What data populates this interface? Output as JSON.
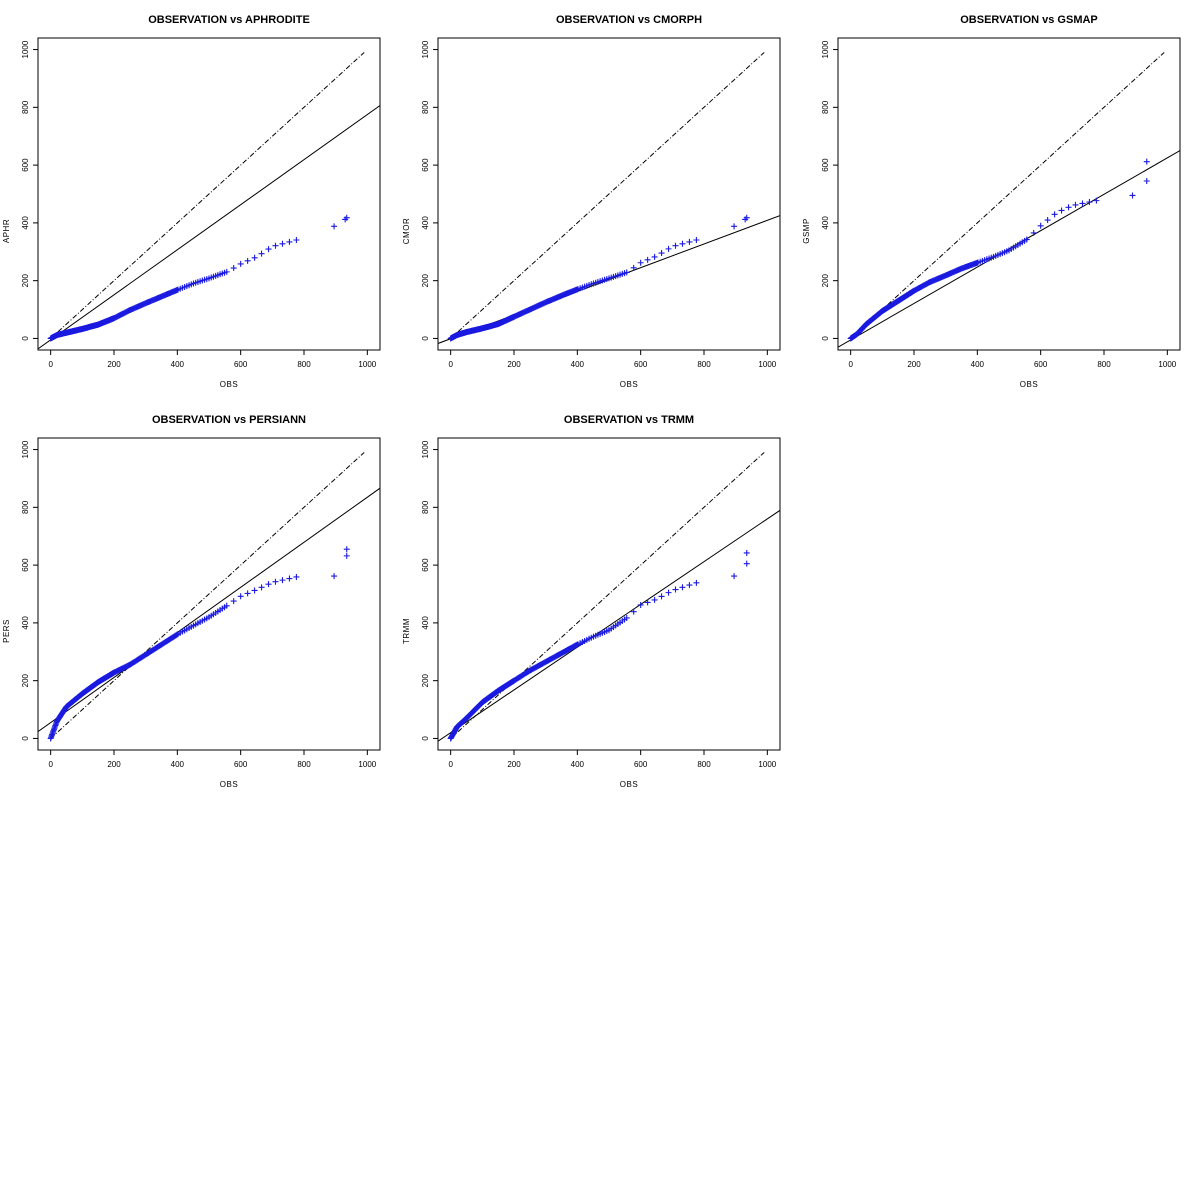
{
  "chart_data": [
    {
      "type": "scatter",
      "title": "OBSERVATION vs APHRODITE",
      "xlabel": "OBS",
      "ylabel": "APHR",
      "xlim": [
        -40,
        1040
      ],
      "ylim": [
        -40,
        1040
      ],
      "xticks": [
        "0",
        "200",
        "400",
        "600",
        "800",
        "1000"
      ],
      "yticks": [
        "0",
        "200",
        "400",
        "600",
        "800",
        "1000"
      ],
      "marker": "+",
      "point_color": "#1a1ae0",
      "regression_line": {
        "intercept": -5,
        "slope": 0.78
      },
      "reference_line": {
        "intercept": 0,
        "slope": 1,
        "to_x": 990
      },
      "curve": {
        "x": [
          0,
          20,
          50,
          100,
          150,
          200,
          250,
          300,
          350,
          400,
          450,
          500,
          560,
          600,
          650,
          700,
          780
        ],
        "y": [
          0,
          12,
          20,
          33,
          48,
          70,
          98,
          122,
          145,
          168,
          190,
          208,
          232,
          258,
          282,
          318,
          342
        ]
      },
      "outliers": {
        "x": [
          895,
          930,
          935
        ],
        "y": [
          388,
          412,
          418
        ]
      }
    },
    {
      "type": "scatter",
      "title": "OBSERVATION vs CMORPH",
      "xlabel": "OBS",
      "ylabel": "CMOR",
      "xlim": [
        -40,
        1040
      ],
      "ylim": [
        -40,
        1040
      ],
      "xticks": [
        "0",
        "200",
        "400",
        "600",
        "800",
        "1000"
      ],
      "yticks": [
        "0",
        "200",
        "400",
        "600",
        "800",
        "1000"
      ],
      "marker": "+",
      "point_color": "#1a1ae0",
      "regression_line": {
        "intercept": -1,
        "slope": 0.41
      },
      "reference_line": {
        "intercept": 0,
        "slope": 1,
        "to_x": 990
      },
      "curve": {
        "x": [
          0,
          20,
          50,
          100,
          150,
          200,
          250,
          300,
          350,
          400,
          450,
          500,
          560,
          600,
          650,
          700,
          780
        ],
        "y": [
          0,
          12,
          22,
          35,
          50,
          75,
          100,
          125,
          148,
          170,
          190,
          208,
          230,
          262,
          285,
          318,
          342
        ]
      },
      "outliers": {
        "x": [
          895,
          930,
          935
        ],
        "y": [
          388,
          412,
          418
        ]
      }
    },
    {
      "type": "scatter",
      "title": "OBSERVATION vs GSMAP",
      "xlabel": "OBS",
      "ylabel": "GSMP",
      "xlim": [
        -40,
        1040
      ],
      "ylim": [
        -40,
        1040
      ],
      "xticks": [
        "0",
        "200",
        "400",
        "600",
        "800",
        "1000"
      ],
      "yticks": [
        "0",
        "200",
        "400",
        "600",
        "800",
        "1000"
      ],
      "marker": "+",
      "point_color": "#1a1ae0",
      "regression_line": {
        "intercept": -5,
        "slope": 0.63
      },
      "reference_line": {
        "intercept": 0,
        "slope": 1,
        "to_x": 990
      },
      "curve": {
        "x": [
          0,
          20,
          50,
          100,
          150,
          200,
          250,
          300,
          350,
          400,
          450,
          500,
          560,
          600,
          650,
          700,
          780
        ],
        "y": [
          0,
          15,
          50,
          95,
          130,
          165,
          195,
          218,
          242,
          262,
          282,
          305,
          345,
          390,
          435,
          460,
          478
        ]
      },
      "outliers": {
        "x": [
          890,
          935,
          935
        ],
        "y": [
          495,
          545,
          612
        ]
      }
    },
    {
      "type": "scatter",
      "title": "OBSERVATION vs PERSIANN",
      "xlabel": "OBS",
      "ylabel": "PERS",
      "xlim": [
        -40,
        1040
      ],
      "ylim": [
        -40,
        1040
      ],
      "xticks": [
        "0",
        "200",
        "400",
        "600",
        "800",
        "1000"
      ],
      "yticks": [
        "0",
        "200",
        "400",
        "600",
        "800",
        "1000"
      ],
      "marker": "+",
      "point_color": "#1a1ae0",
      "regression_line": {
        "intercept": 55,
        "slope": 0.78
      },
      "reference_line": {
        "intercept": 0,
        "slope": 1,
        "to_x": 990
      },
      "curve": {
        "x": [
          0,
          20,
          50,
          100,
          150,
          200,
          250,
          300,
          350,
          400,
          450,
          500,
          560,
          600,
          650,
          700,
          780
        ],
        "y": [
          0,
          60,
          110,
          155,
          195,
          228,
          255,
          290,
          325,
          360,
          390,
          420,
          462,
          492,
          515,
          540,
          560
        ]
      },
      "outliers": {
        "x": [
          895,
          935,
          935
        ],
        "y": [
          562,
          632,
          655
        ]
      }
    },
    {
      "type": "scatter",
      "title": "OBSERVATION vs TRMM",
      "xlabel": "OBS",
      "ylabel": "TRMM",
      "xlim": [
        -40,
        1040
      ],
      "ylim": [
        -40,
        1040
      ],
      "xticks": [
        "0",
        "200",
        "400",
        "600",
        "800",
        "1000"
      ],
      "yticks": [
        "0",
        "200",
        "400",
        "600",
        "800",
        "1000"
      ],
      "marker": "+",
      "point_color": "#1a1ae0",
      "regression_line": {
        "intercept": 20,
        "slope": 0.74
      },
      "reference_line": {
        "intercept": 0,
        "slope": 1,
        "to_x": 990
      },
      "curve": {
        "x": [
          0,
          20,
          50,
          100,
          150,
          200,
          250,
          300,
          350,
          400,
          450,
          500,
          560,
          600,
          650,
          700,
          780
        ],
        "y": [
          0,
          40,
          70,
          125,
          165,
          200,
          235,
          265,
          295,
          325,
          352,
          375,
          420,
          462,
          482,
          512,
          540
        ]
      },
      "outliers": {
        "x": [
          895,
          935,
          935
        ],
        "y": [
          562,
          605,
          642
        ]
      }
    }
  ]
}
